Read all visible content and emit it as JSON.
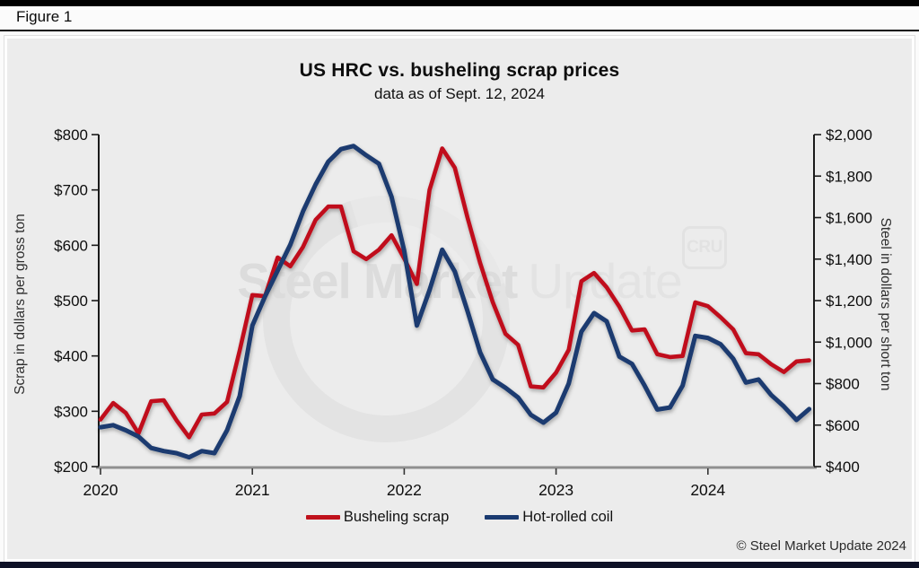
{
  "figure_label": "Figure 1",
  "title": "US HRC vs. busheling scrap prices",
  "subtitle": "data as of Sept. 12, 2024",
  "watermark": {
    "text_bold": "Steel Market",
    "text_light": "Update",
    "logo_text": "CRU"
  },
  "copyright": "© Steel Market Update 2024",
  "colors": {
    "busheling": "#c0111c",
    "hrc": "#1a3a70",
    "panel_bg": "#ececec",
    "bottom_axis": "#8f8f8f",
    "axis_line": "#1a1a1a"
  },
  "chart_data": {
    "type": "line",
    "frequency": "monthly",
    "start_month": "2020-01",
    "end_month": "2024-09",
    "x_tick_labels": [
      "2020",
      "2021",
      "2022",
      "2023",
      "2024"
    ],
    "grid": false,
    "legend_position": "bottom",
    "left_axis": {
      "label": "Scrap in dollars per gross ton",
      "range": [
        200,
        800
      ],
      "tick_values": [
        800,
        700,
        600,
        500,
        400,
        300,
        200
      ],
      "tick_labels": [
        "$800",
        "$700",
        "$600",
        "$500",
        "$400",
        "$300",
        "$200"
      ]
    },
    "right_axis": {
      "label": "Steel in dollars per short ton",
      "range": [
        400,
        2000
      ],
      "tick_values": [
        2000,
        1800,
        1600,
        1400,
        1200,
        1000,
        800,
        600,
        400
      ],
      "tick_labels": [
        "$2,000",
        "$1,800",
        "$1,600",
        "$1,400",
        "$1,200",
        "$1,000",
        "$800",
        "$600",
        "$400"
      ]
    },
    "series": [
      {
        "name": "Busheling scrap",
        "axis": "left",
        "unit": "dollars per gross ton",
        "color": "#c0111c",
        "values": [
          285,
          315,
          297,
          260,
          318,
          320,
          284,
          253,
          294,
          296,
          317,
          410,
          510,
          508,
          578,
          562,
          597,
          646,
          670,
          670,
          589,
          575,
          592,
          618,
          576,
          530,
          700,
          775,
          740,
          650,
          568,
          497,
          440,
          420,
          345,
          343,
          370,
          411,
          535,
          550,
          524,
          489,
          446,
          448,
          403,
          398,
          400,
          497,
          490,
          470,
          448,
          405,
          403,
          385,
          371,
          390,
          392
        ]
      },
      {
        "name": "Hot-rolled coil",
        "axis": "right",
        "unit": "dollars per short ton",
        "color": "#1a3a70",
        "values": [
          590,
          600,
          575,
          545,
          490,
          475,
          465,
          445,
          475,
          465,
          575,
          740,
          1080,
          1220,
          1345,
          1470,
          1630,
          1760,
          1870,
          1930,
          1945,
          1900,
          1860,
          1700,
          1440,
          1080,
          1250,
          1445,
          1340,
          1150,
          950,
          820,
          780,
          733,
          650,
          612,
          660,
          800,
          1050,
          1140,
          1100,
          930,
          895,
          790,
          675,
          685,
          790,
          1030,
          1020,
          990,
          920,
          805,
          820,
          745,
          690,
          625,
          677
        ]
      }
    ]
  }
}
